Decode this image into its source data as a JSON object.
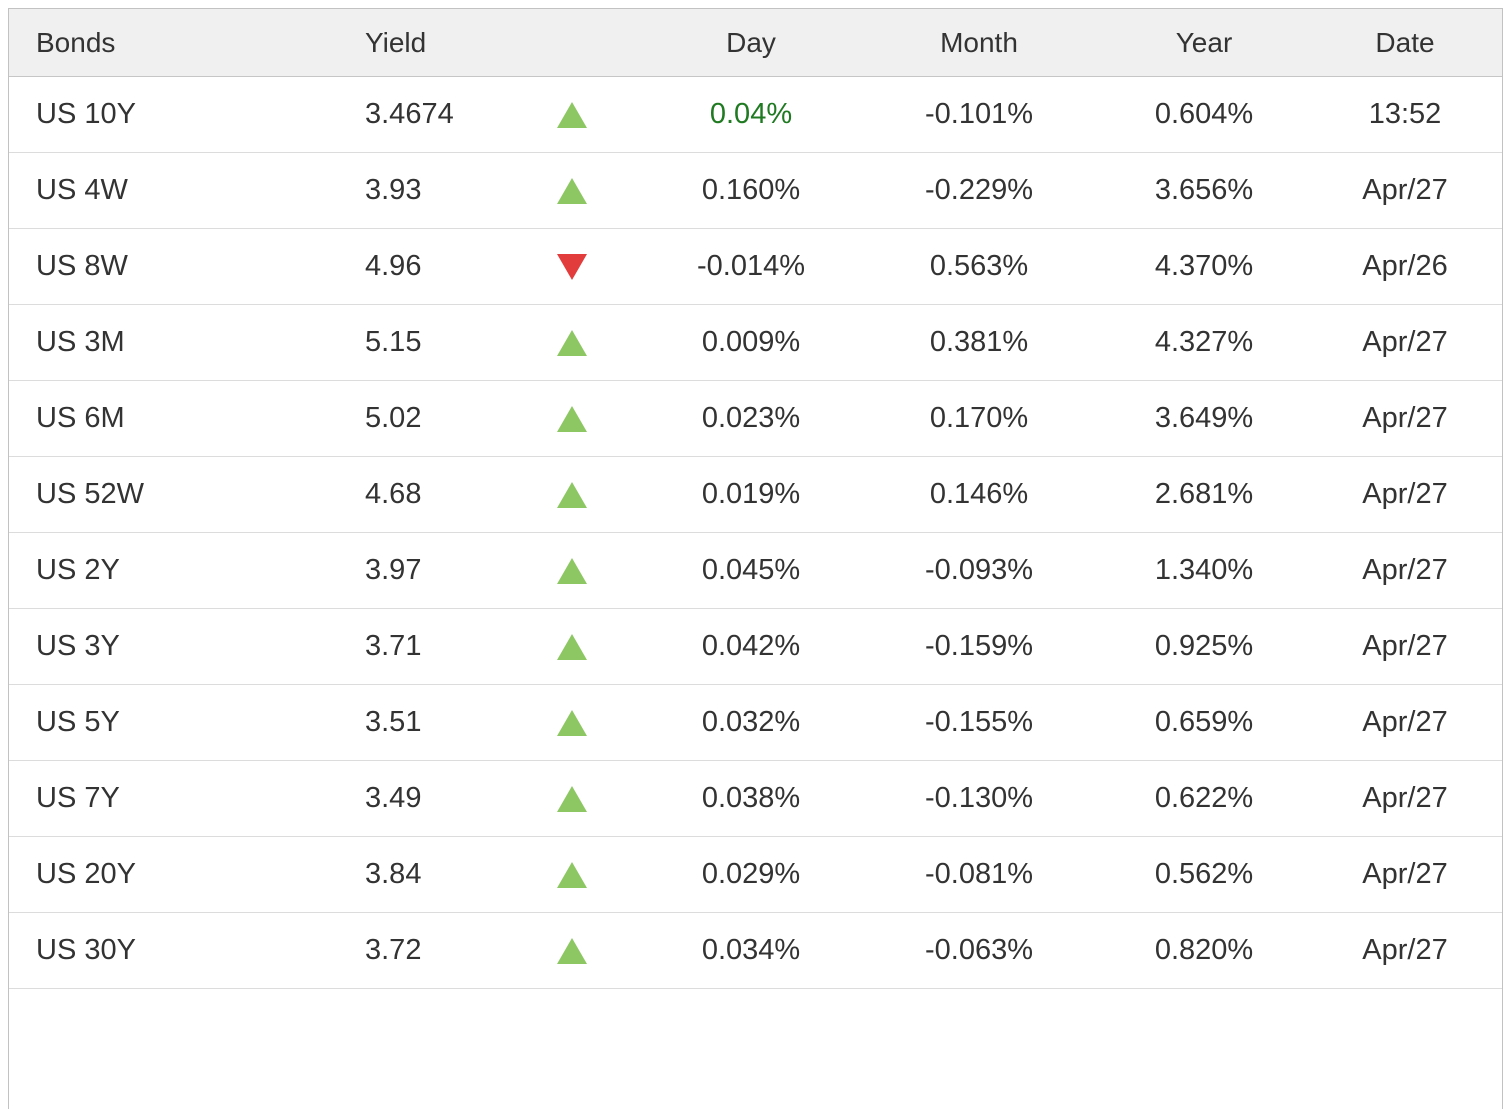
{
  "colors": {
    "up_triangle": "#8dc763",
    "down_triangle": "#e23c3c",
    "highlighted_day_text": "#1f7a22",
    "header_background": "#f0f0f0",
    "text": "#333333"
  },
  "table": {
    "columns": [
      {
        "id": "bond",
        "label": "Bonds"
      },
      {
        "id": "yield",
        "label": "Yield"
      },
      {
        "id": "arrow",
        "label": ""
      },
      {
        "id": "day",
        "label": "Day"
      },
      {
        "id": "month",
        "label": "Month"
      },
      {
        "id": "year",
        "label": "Year"
      },
      {
        "id": "date",
        "label": "Date"
      }
    ],
    "rows": [
      {
        "bond": "US 10Y",
        "yield": "3.4674",
        "direction": "up",
        "day": "0.04%",
        "day_highlighted": true,
        "month": "-0.101%",
        "year": "0.604%",
        "date": "13:52"
      },
      {
        "bond": "US 4W",
        "yield": "3.93",
        "direction": "up",
        "day": "0.160%",
        "day_highlighted": false,
        "month": "-0.229%",
        "year": "3.656%",
        "date": "Apr/27"
      },
      {
        "bond": "US 8W",
        "yield": "4.96",
        "direction": "down",
        "day": "-0.014%",
        "day_highlighted": false,
        "month": "0.563%",
        "year": "4.370%",
        "date": "Apr/26"
      },
      {
        "bond": "US 3M",
        "yield": "5.15",
        "direction": "up",
        "day": "0.009%",
        "day_highlighted": false,
        "month": "0.381%",
        "year": "4.327%",
        "date": "Apr/27"
      },
      {
        "bond": "US 6M",
        "yield": "5.02",
        "direction": "up",
        "day": "0.023%",
        "day_highlighted": false,
        "month": "0.170%",
        "year": "3.649%",
        "date": "Apr/27"
      },
      {
        "bond": "US 52W",
        "yield": "4.68",
        "direction": "up",
        "day": "0.019%",
        "day_highlighted": false,
        "month": "0.146%",
        "year": "2.681%",
        "date": "Apr/27"
      },
      {
        "bond": "US 2Y",
        "yield": "3.97",
        "direction": "up",
        "day": "0.045%",
        "day_highlighted": false,
        "month": "-0.093%",
        "year": "1.340%",
        "date": "Apr/27"
      },
      {
        "bond": "US 3Y",
        "yield": "3.71",
        "direction": "up",
        "day": "0.042%",
        "day_highlighted": false,
        "month": "-0.159%",
        "year": "0.925%",
        "date": "Apr/27"
      },
      {
        "bond": "US 5Y",
        "yield": "3.51",
        "direction": "up",
        "day": "0.032%",
        "day_highlighted": false,
        "month": "-0.155%",
        "year": "0.659%",
        "date": "Apr/27"
      },
      {
        "bond": "US 7Y",
        "yield": "3.49",
        "direction": "up",
        "day": "0.038%",
        "day_highlighted": false,
        "month": "-0.130%",
        "year": "0.622%",
        "date": "Apr/27"
      },
      {
        "bond": "US 20Y",
        "yield": "3.84",
        "direction": "up",
        "day": "0.029%",
        "day_highlighted": false,
        "month": "-0.081%",
        "year": "0.562%",
        "date": "Apr/27"
      },
      {
        "bond": "US 30Y",
        "yield": "3.72",
        "direction": "up",
        "day": "0.034%",
        "day_highlighted": false,
        "month": "-0.063%",
        "year": "0.820%",
        "date": "Apr/27"
      }
    ]
  }
}
